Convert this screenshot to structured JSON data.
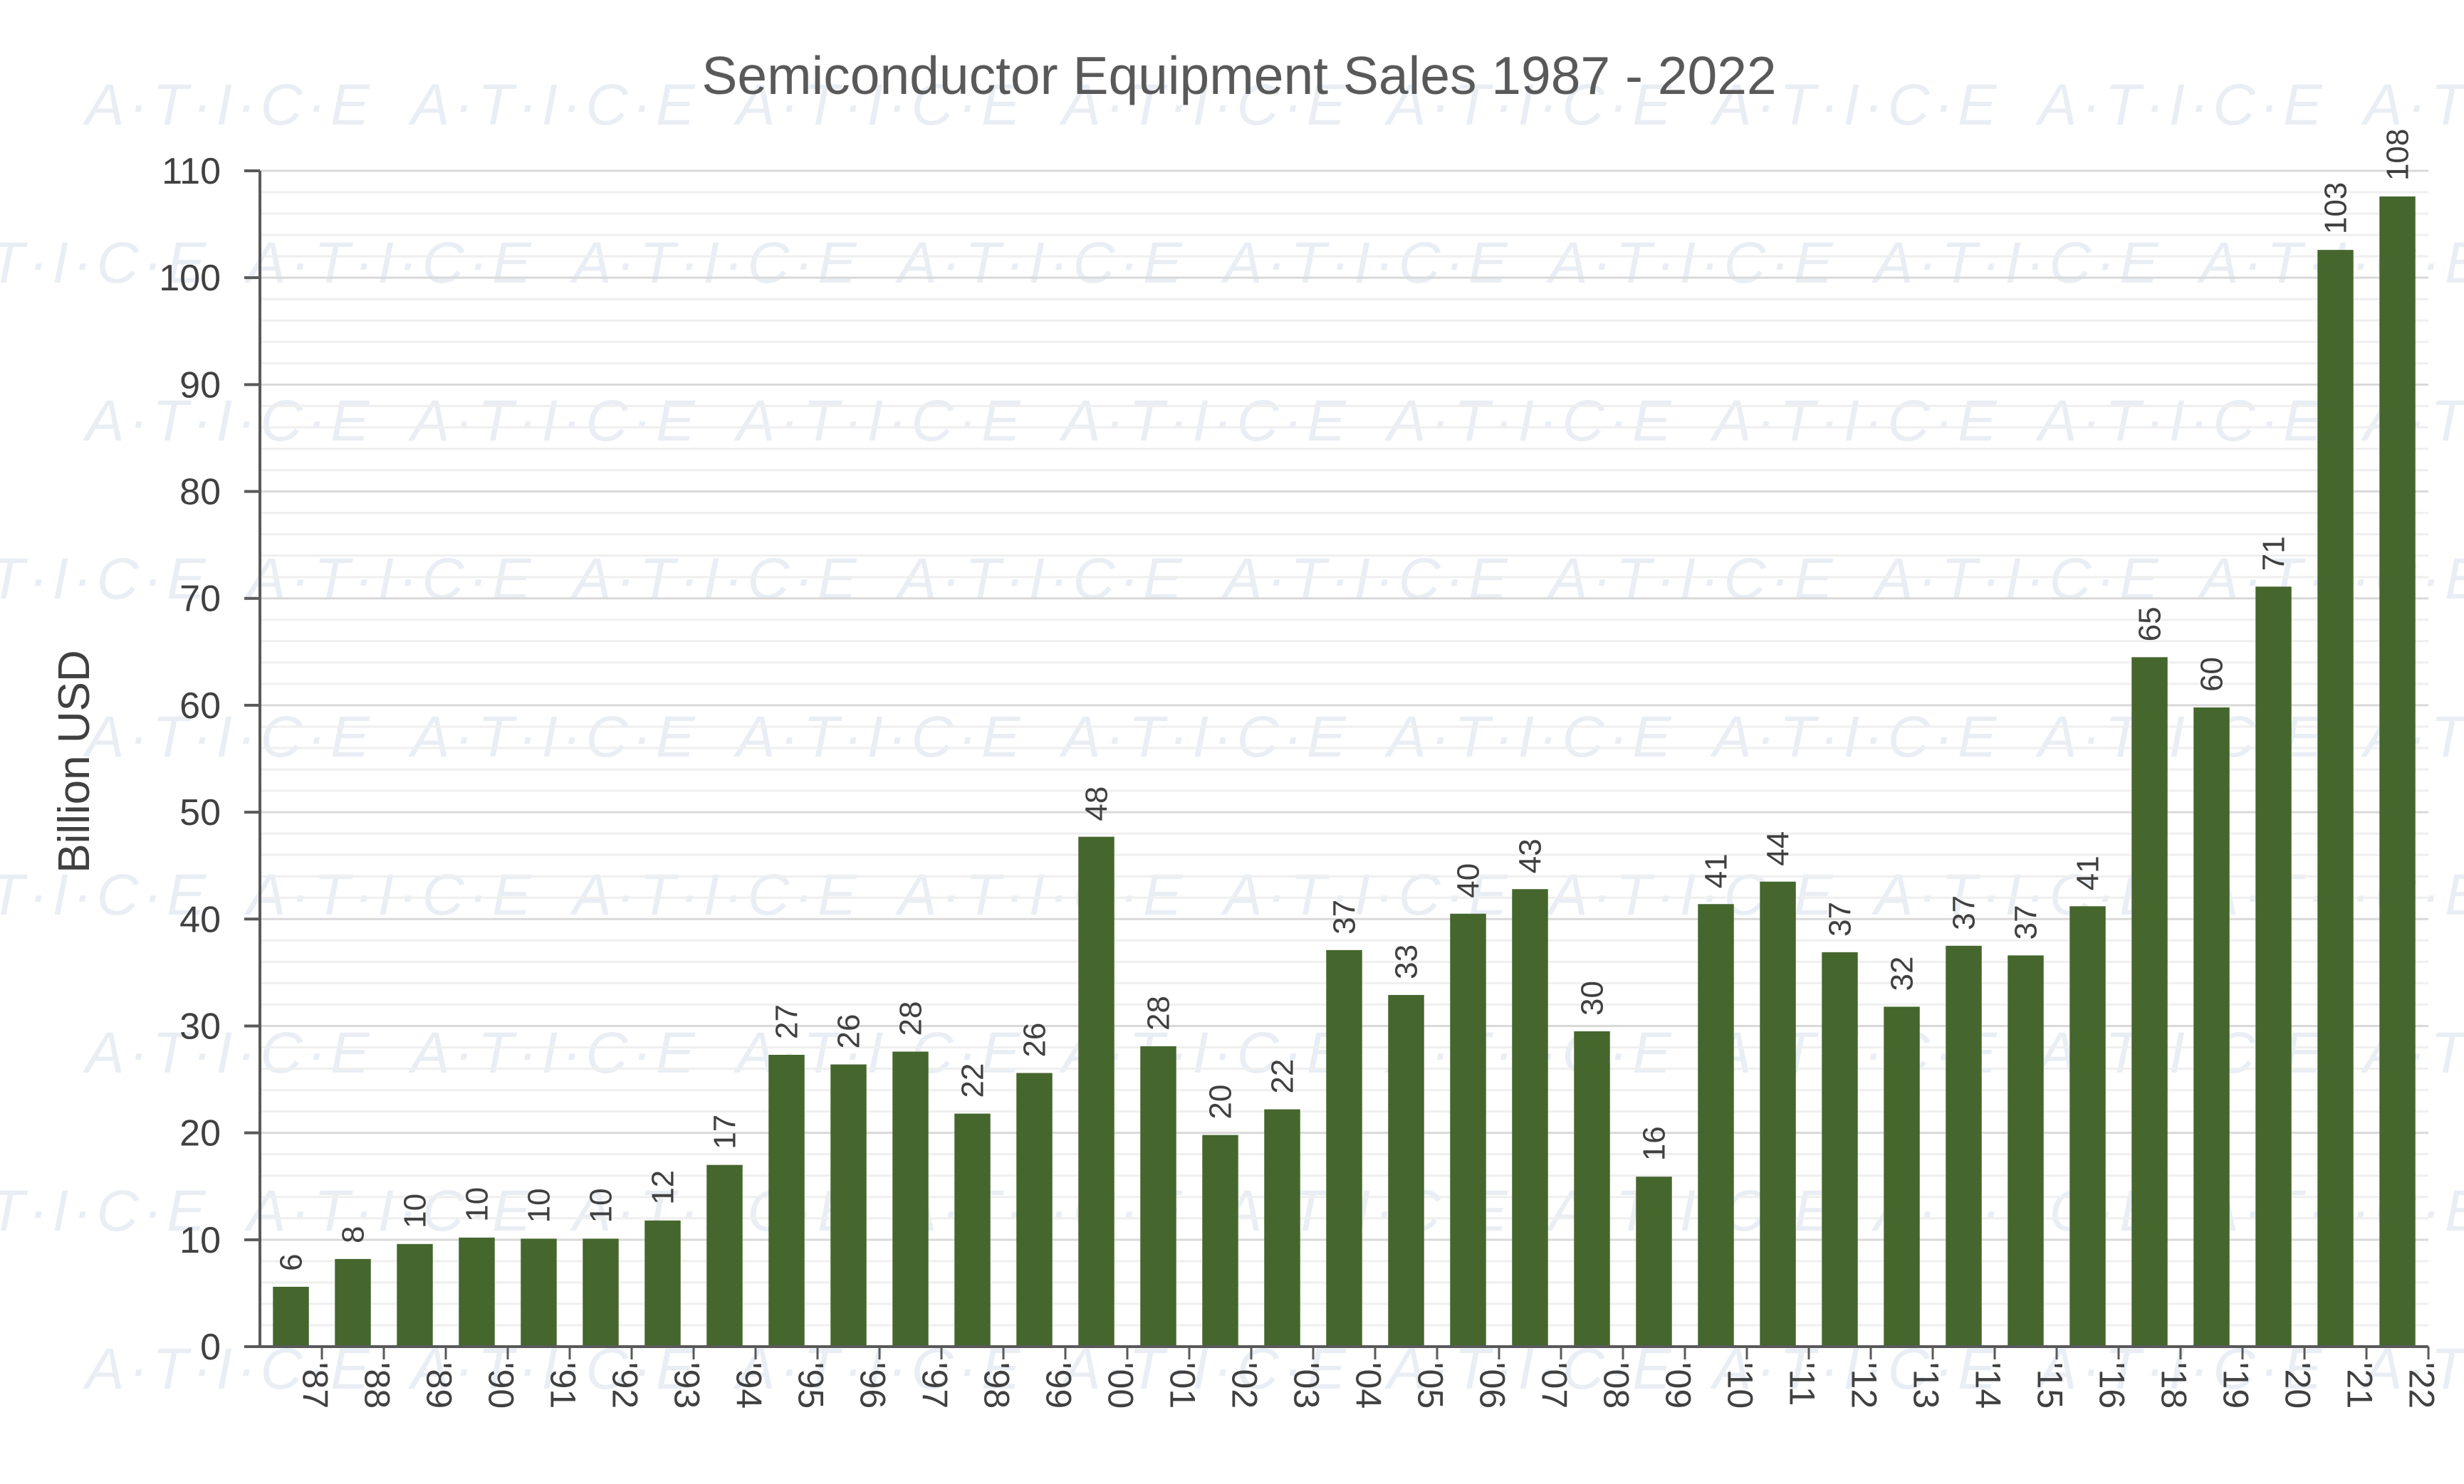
{
  "watermark": "A·T·I·C·E",
  "colors": {
    "bar": "#45662d",
    "grid_major": "#d9d9d9",
    "grid_minor": "#efefef",
    "axis": "#595959",
    "watermark": "#e9eef5"
  },
  "chart_data": {
    "type": "bar",
    "title": "Semiconductor Equipment Sales 1987 - 2022",
    "xlabel": "",
    "ylabel": "Billion USD",
    "ylim": [
      0,
      110
    ],
    "yticks": [
      0,
      10,
      20,
      30,
      40,
      50,
      60,
      70,
      80,
      90,
      100,
      110
    ],
    "grid": true,
    "categories": [
      "'87",
      "'88",
      "'89",
      "'90",
      "'91",
      "'92",
      "'93",
      "'94",
      "'95",
      "'96",
      "'97",
      "'98",
      "'99",
      "'00",
      "'01",
      "'02",
      "'03",
      "'04",
      "'05",
      "'06",
      "'07",
      "'08",
      "'09",
      "'10",
      "'11",
      "'12",
      "'13",
      "'14",
      "'15",
      "'16",
      "'18",
      "'19",
      "'20",
      "'21",
      "'22"
    ],
    "values": [
      5.6,
      8.2,
      9.6,
      10.2,
      10.1,
      10.1,
      11.8,
      17.0,
      27.3,
      26.4,
      27.6,
      21.8,
      25.6,
      47.7,
      28.1,
      19.8,
      22.2,
      37.1,
      32.9,
      40.5,
      42.8,
      29.5,
      15.9,
      41.4,
      43.5,
      36.9,
      31.8,
      37.5,
      36.6,
      41.2,
      64.5,
      59.8,
      71.1,
      102.6,
      107.6
    ],
    "data_labels": [
      "6",
      "8",
      "10",
      "10",
      "10",
      "10",
      "12",
      "17",
      "27",
      "26",
      "28",
      "22",
      "26",
      "48",
      "28",
      "20",
      "22",
      "37",
      "33",
      "40",
      "43",
      "30",
      "16",
      "41",
      "44",
      "37",
      "32",
      "37",
      "37",
      "41",
      "65",
      "60",
      "71",
      "103",
      "108"
    ]
  }
}
